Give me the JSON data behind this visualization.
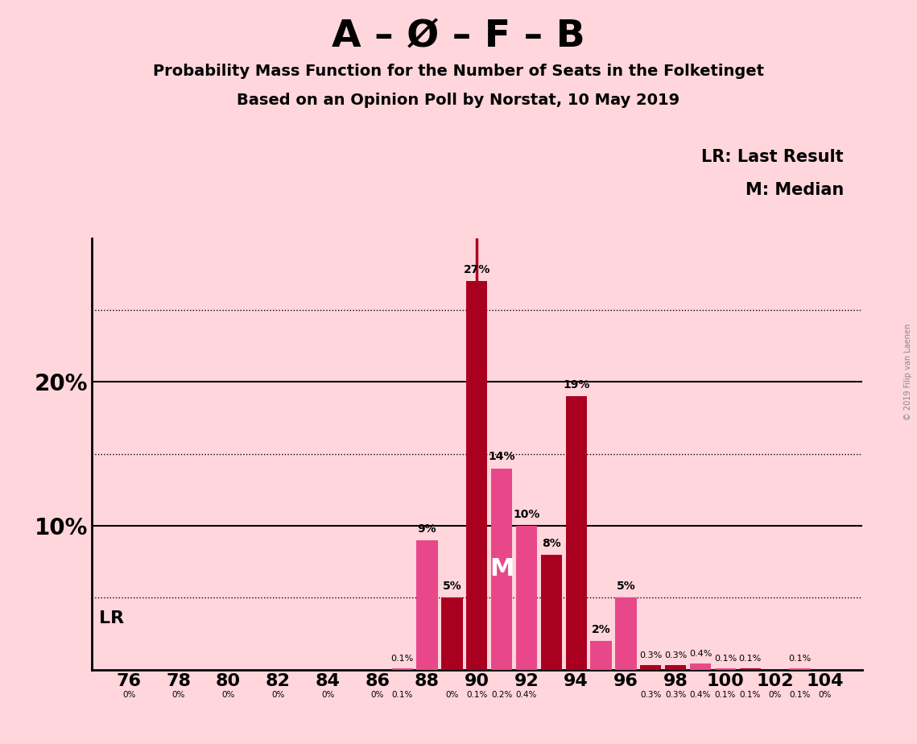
{
  "title_main": "A – Ø – F – B",
  "title_sub1": "Probability Mass Function for the Number of Seats in the Folketinget",
  "title_sub2": "Based on an Opinion Poll by Norstat, 10 May 2019",
  "background_color": "#FFD6DC",
  "bar_seats": [
    76,
    77,
    78,
    79,
    80,
    81,
    82,
    83,
    84,
    85,
    86,
    87,
    88,
    89,
    90,
    91,
    92,
    93,
    94,
    95,
    96,
    97,
    98,
    99,
    100,
    101,
    102,
    103,
    104
  ],
  "bar_values": [
    0.0,
    0.0,
    0.0,
    0.0,
    0.0,
    0.0,
    0.0,
    0.0,
    0.0,
    0.0,
    0.0,
    0.1,
    9.0,
    5.0,
    27.0,
    14.0,
    10.0,
    8.0,
    19.0,
    2.0,
    5.0,
    0.3,
    0.3,
    0.4,
    0.1,
    0.1,
    0.0,
    0.1,
    0.0
  ],
  "bar_labels": [
    "0%",
    "0%",
    "0%",
    "0%",
    "0%",
    "0%",
    "0%",
    "0%",
    "0%",
    "0%",
    "0%",
    "0.1%",
    "9%",
    "5%",
    "27%",
    "14%",
    "10%",
    "8%",
    "19%",
    "2%",
    "5%",
    "0.3%",
    "0.3%",
    "0.4%",
    "0.1%",
    "0.1%",
    "0%",
    "0.1%",
    "0%"
  ],
  "show_label": [
    false,
    false,
    false,
    false,
    false,
    false,
    false,
    false,
    false,
    false,
    false,
    true,
    true,
    true,
    true,
    true,
    true,
    true,
    true,
    true,
    true,
    true,
    true,
    true,
    true,
    true,
    false,
    true,
    false
  ],
  "dark_red": "#AA0020",
  "hot_pink": "#E8488A",
  "bar_colors_key": [
    2,
    2,
    2,
    2,
    2,
    2,
    2,
    2,
    2,
    2,
    2,
    2,
    1,
    2,
    2,
    1,
    1,
    2,
    2,
    1,
    1,
    2,
    2,
    1,
    2,
    2,
    2,
    2,
    2
  ],
  "median_seat": 91,
  "lr_seat": 90,
  "ylim_max": 30,
  "legend_lr": "LR: Last Result",
  "legend_m": "M: Median",
  "watermark": "© 2019 Filip van Laenen",
  "xtick_seats": [
    76,
    78,
    80,
    82,
    84,
    86,
    88,
    90,
    92,
    94,
    96,
    98,
    100,
    102,
    104
  ],
  "small_label_seats": [
    76,
    78,
    80,
    82,
    84,
    86,
    87,
    88,
    89,
    90,
    91,
    92,
    93,
    94,
    95,
    96,
    97,
    98,
    99,
    100,
    101,
    102,
    103,
    104
  ],
  "small_label_vals": [
    "0%",
    "0%",
    "0%",
    "0%",
    "0%",
    "0%",
    "0.1%",
    "",
    "",
    "",
    "",
    "",
    "",
    "",
    "",
    "",
    "",
    "",
    "",
    "",
    "",
    "",
    "",
    ""
  ],
  "inline_labels_seats": [
    76,
    78,
    80,
    82,
    84,
    86
  ],
  "bottom_label_all": [
    "0%",
    "0%",
    "0%",
    "0%",
    "0%",
    "0%",
    "0%",
    "0.1%",
    "0%",
    "0.1%",
    "0.2%",
    "0.4%"
  ]
}
